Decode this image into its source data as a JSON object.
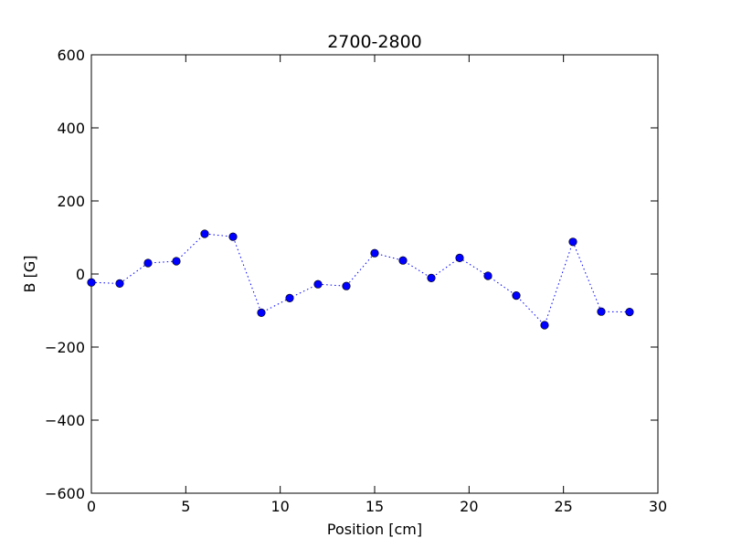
{
  "chart_data": {
    "type": "line",
    "title": "2700-2800",
    "xlabel": "Position [cm]",
    "ylabel": "B [G]",
    "xlim": [
      0,
      30
    ],
    "ylim": [
      -600,
      600
    ],
    "xticks": [
      0,
      5,
      10,
      15,
      20,
      25,
      30
    ],
    "yticks": [
      -600,
      -400,
      -200,
      0,
      200,
      400,
      600
    ],
    "xtick_labels": [
      "0",
      "5",
      "10",
      "15",
      "20",
      "25",
      "30"
    ],
    "ytick_labels": [
      "−600",
      "−400",
      "−200",
      "0",
      "200",
      "400",
      "600"
    ],
    "grid": false,
    "legend": "none",
    "series": [
      {
        "color": "#0000ff",
        "line_style": "dotted",
        "marker": "circle",
        "x": [
          0,
          1.5,
          3,
          4.5,
          6,
          7.5,
          9,
          10.5,
          12,
          13.5,
          15,
          16.5,
          18,
          19.5,
          21,
          22.5,
          24,
          25.5,
          27,
          28.5
        ],
        "y": [
          -23,
          -26,
          30,
          35,
          110,
          102,
          -106,
          -66,
          -28,
          -33,
          57,
          37,
          -11,
          44,
          -5,
          -59,
          -140,
          88,
          -103,
          -104
        ]
      }
    ]
  }
}
